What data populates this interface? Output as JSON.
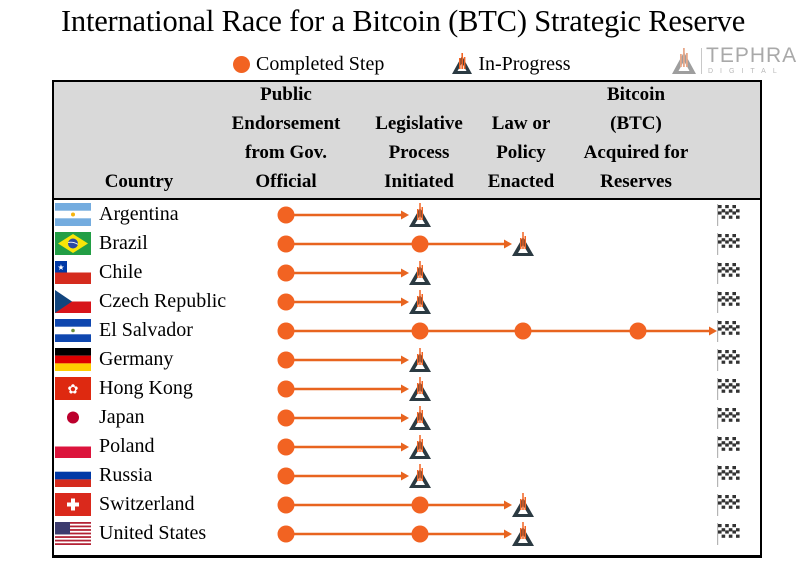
{
  "title": "International Race for a Bitcoin (BTC) Strategic Reserve",
  "legend": {
    "completed_label": "Completed Step",
    "in_progress_label": "In-Progress"
  },
  "logo": {
    "brand": "TEPHRA",
    "sub": "DIGITAL"
  },
  "colors": {
    "completed": "#f26322",
    "arrow": "#e8641f",
    "in_progress_outline": "#2b3a42",
    "header_bg": "#d9d9d9"
  },
  "table": {
    "headers": {
      "country": "Country",
      "step1": [
        "Public",
        "Endorsement",
        "from Gov.",
        "Official"
      ],
      "step2": [
        "Legislative",
        "Process",
        "Initiated"
      ],
      "step3": [
        "Law or",
        "Policy",
        "Enacted"
      ],
      "step4": [
        "Bitcoin",
        "(BTC)",
        "Acquired for",
        "Reserves"
      ]
    },
    "step_names": [
      "Public Endorsement from Gov. Official",
      "Legislative Process Initiated",
      "Law or Policy Enacted",
      "Bitcoin (BTC) Acquired for Reserves"
    ],
    "finish_icon": "checkered-flag-icon",
    "rows": [
      {
        "country": "Argentina",
        "flag": "argentina",
        "completed": 1,
        "in_progress": 2
      },
      {
        "country": "Brazil",
        "flag": "brazil",
        "completed": 2,
        "in_progress": 3
      },
      {
        "country": "Chile",
        "flag": "chile",
        "completed": 1,
        "in_progress": 2
      },
      {
        "country": "Czech Republic",
        "flag": "czech",
        "completed": 1,
        "in_progress": 2
      },
      {
        "country": "El Salvador",
        "flag": "el-salvador",
        "completed": 4,
        "in_progress": 0
      },
      {
        "country": "Germany",
        "flag": "germany",
        "completed": 1,
        "in_progress": 2
      },
      {
        "country": "Hong Kong",
        "flag": "hong-kong",
        "completed": 1,
        "in_progress": 2
      },
      {
        "country": "Japan",
        "flag": "japan",
        "completed": 1,
        "in_progress": 2
      },
      {
        "country": "Poland",
        "flag": "poland",
        "completed": 1,
        "in_progress": 2
      },
      {
        "country": "Russia",
        "flag": "russia",
        "completed": 1,
        "in_progress": 2
      },
      {
        "country": "Switzerland",
        "flag": "switzerland",
        "completed": 2,
        "in_progress": 3
      },
      {
        "country": "United States",
        "flag": "united-states",
        "completed": 2,
        "in_progress": 3
      }
    ]
  },
  "chart_data": {
    "type": "table",
    "title": "International Race for a Bitcoin (BTC) Strategic Reserve",
    "legend": [
      "Completed Step",
      "In-Progress"
    ],
    "columns": [
      "Country",
      "Public Endorsement from Gov. Official",
      "Legislative Process Initiated",
      "Law or Policy Enacted",
      "Bitcoin (BTC) Acquired for Reserves"
    ],
    "rows": [
      [
        "Argentina",
        "Completed",
        "In-Progress",
        "",
        ""
      ],
      [
        "Brazil",
        "Completed",
        "Completed",
        "In-Progress",
        ""
      ],
      [
        "Chile",
        "Completed",
        "In-Progress",
        "",
        ""
      ],
      [
        "Czech Republic",
        "Completed",
        "In-Progress",
        "",
        ""
      ],
      [
        "El Salvador",
        "Completed",
        "Completed",
        "Completed",
        "Completed"
      ],
      [
        "Germany",
        "Completed",
        "In-Progress",
        "",
        ""
      ],
      [
        "Hong Kong",
        "Completed",
        "In-Progress",
        "",
        ""
      ],
      [
        "Japan",
        "Completed",
        "In-Progress",
        "",
        ""
      ],
      [
        "Poland",
        "Completed",
        "In-Progress",
        "",
        ""
      ],
      [
        "Russia",
        "Completed",
        "In-Progress",
        "",
        ""
      ],
      [
        "Switzerland",
        "Completed",
        "Completed",
        "In-Progress",
        ""
      ],
      [
        "United States",
        "Completed",
        "Completed",
        "In-Progress",
        ""
      ]
    ]
  }
}
